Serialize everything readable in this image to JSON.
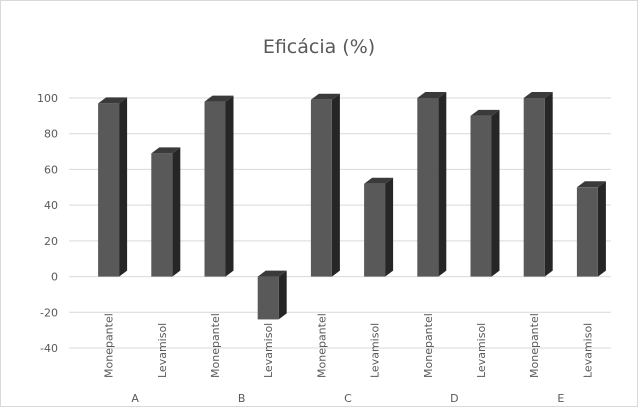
{
  "chart_data": {
    "type": "bar",
    "title": "Eficácia (%)",
    "xlabel": "",
    "ylabel": "",
    "ylim": [
      -40,
      100
    ],
    "yticks": [
      100,
      80,
      60,
      40,
      20,
      0,
      -20,
      -40
    ],
    "grid": true,
    "legend": "none",
    "style": "3d-column",
    "bar_color": "#595959",
    "categories": [
      "Monepantel",
      "Levamisol",
      "Monepantel",
      "Levamisol",
      "Monepantel",
      "Levamisol",
      "Monepantel",
      "Levamisol",
      "Monepantel",
      "Levamisol"
    ],
    "groups": [
      "A",
      "B",
      "C",
      "D",
      "E"
    ],
    "values": [
      97,
      69,
      98,
      -24,
      99,
      52,
      100,
      90,
      100,
      50
    ]
  }
}
